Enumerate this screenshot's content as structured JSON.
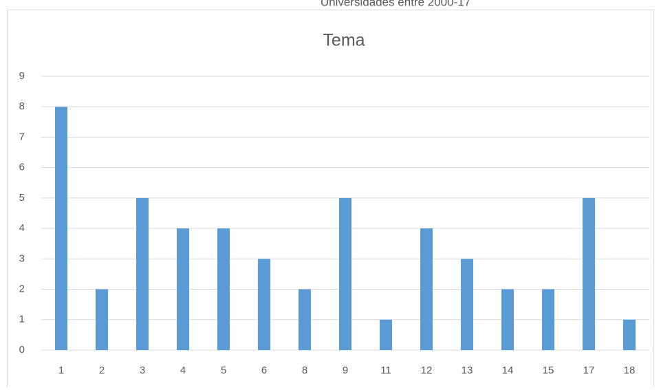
{
  "chart_data": {
    "type": "bar",
    "subtitle": "Universidades entre 2000-17",
    "title": "Tema",
    "categories": [
      "1",
      "2",
      "3",
      "4",
      "5",
      "6",
      "8",
      "9",
      "11",
      "12",
      "13",
      "14",
      "15",
      "17",
      "18"
    ],
    "values": [
      8,
      2,
      5,
      4,
      4,
      3,
      2,
      5,
      1,
      4,
      3,
      2,
      2,
      5,
      1
    ],
    "color": "#5b9bd5",
    "ylim": [
      0,
      9
    ],
    "yticks": [
      0,
      1,
      2,
      3,
      4,
      5,
      6,
      7,
      8,
      9
    ],
    "grid": true
  }
}
